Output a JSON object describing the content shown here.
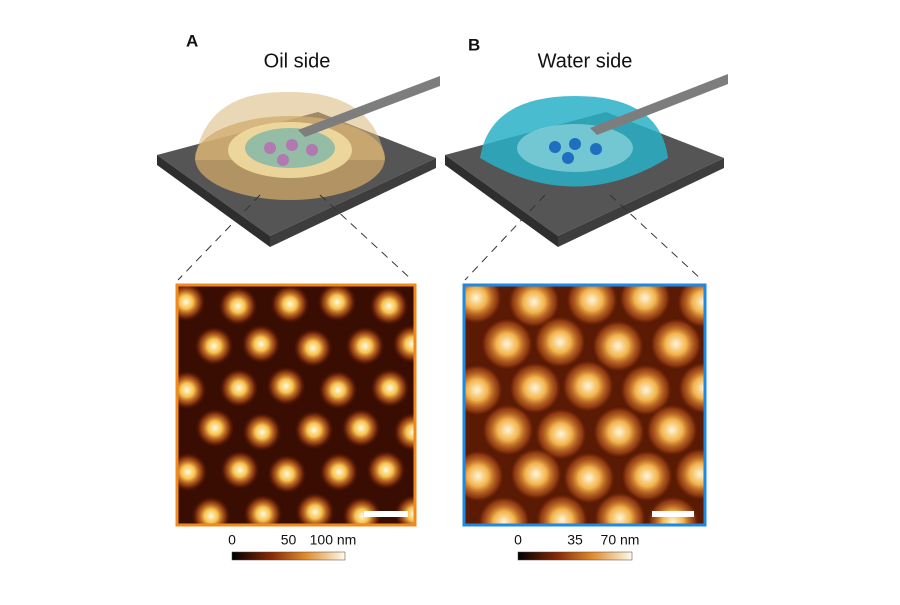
{
  "panels": [
    {
      "label": "A",
      "title": "Oil side",
      "colorbar": [
        "0",
        "50",
        "100 nm"
      ]
    },
    {
      "label": "B",
      "title": "Water side",
      "colorbar": [
        "0",
        "35",
        "70 nm"
      ]
    }
  ]
}
